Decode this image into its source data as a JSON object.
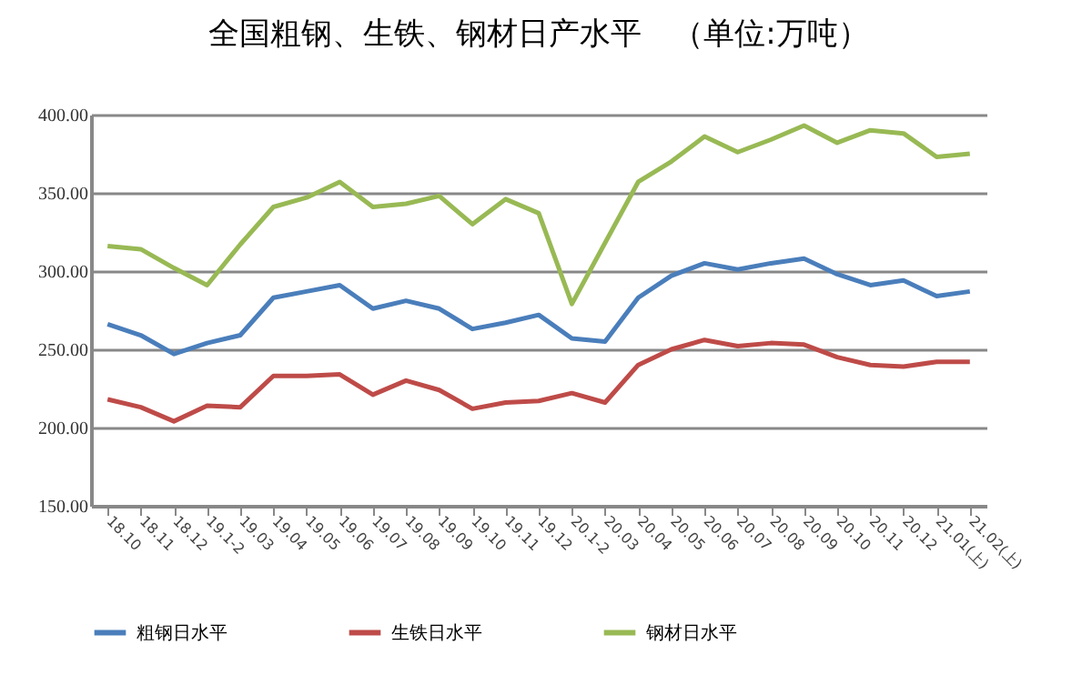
{
  "chart_data": {
    "type": "line",
    "title": "全国粗钢、生铁、钢材日产水平　（单位:万吨）",
    "categories": [
      "18.10",
      "18.11",
      "18.12",
      "19.1-2",
      "19.03",
      "19.04",
      "19.05",
      "19.06",
      "19.07",
      "19.08",
      "19.09",
      "19.10",
      "19.11",
      "19.12",
      "20.1-2",
      "20.03",
      "20.04",
      "20.05",
      "20.06",
      "20.07",
      "20.08",
      "20.09",
      "20.10",
      "20.11",
      "20.12",
      "21.01(上)",
      "21.02(上)"
    ],
    "series": [
      {
        "name": "粗钢日水平",
        "color": "#4a7ebb",
        "values": [
          266,
          259,
          247,
          254,
          259,
          283,
          287,
          291,
          276,
          281,
          276,
          263,
          267,
          272,
          257,
          255,
          283,
          297,
          305,
          301,
          305,
          308,
          298,
          291,
          294,
          284,
          287
        ]
      },
      {
        "name": "生铁日水平",
        "color": "#be4b48",
        "values": [
          218,
          213,
          204,
          214,
          213,
          233,
          233,
          234,
          221,
          230,
          224,
          212,
          216,
          217,
          222,
          216,
          240,
          250,
          256,
          252,
          254,
          253,
          245,
          240,
          239,
          242,
          242
        ]
      },
      {
        "name": "钢材日水平",
        "color": "#98b954",
        "values": [
          316,
          314,
          302,
          291,
          317,
          341,
          347,
          357,
          341,
          343,
          348,
          330,
          346,
          337,
          279,
          318,
          357,
          370,
          386,
          376,
          384,
          393,
          382,
          390,
          388,
          373,
          375
        ]
      }
    ],
    "ylim": [
      150,
      400
    ],
    "yticks": [
      {
        "value": 150,
        "label": "150.00"
      },
      {
        "value": 200,
        "label": "200.00"
      },
      {
        "value": 250,
        "label": "250.00"
      },
      {
        "value": 300,
        "label": "300.00"
      },
      {
        "value": 350,
        "label": "350.00"
      },
      {
        "value": 400,
        "label": "400.00"
      }
    ],
    "grid": "y",
    "legend": "bottom",
    "marker": "none",
    "line_style": "solid"
  }
}
